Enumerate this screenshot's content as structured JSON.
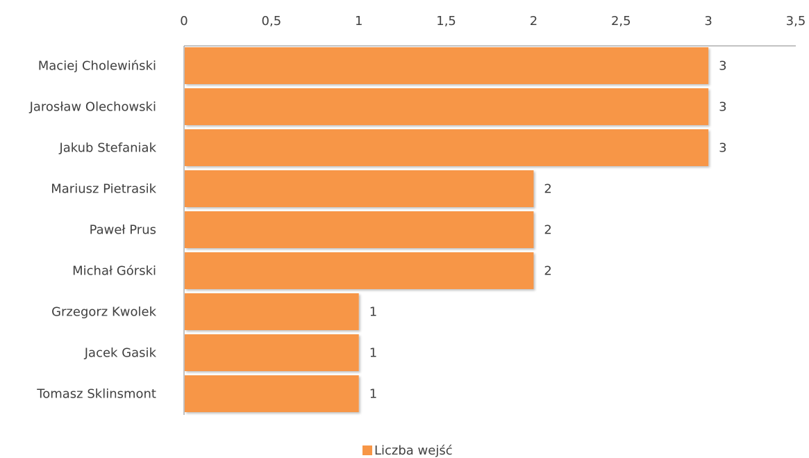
{
  "chart_data": {
    "type": "bar",
    "orientation": "horizontal",
    "categories": [
      "Maciej Cholewiński",
      "Jarosław Olechowski",
      "Jakub Stefaniak",
      "Mariusz Pietrasik",
      "Paweł Prus",
      "Michał Górski",
      "Grzegorz Kwolek",
      "Jacek Gasik",
      "Tomasz Sklinsmont"
    ],
    "series": [
      {
        "name": "Liczba wejść",
        "values": [
          3,
          3,
          3,
          2,
          2,
          2,
          1,
          1,
          1
        ],
        "color": "#F79646"
      }
    ],
    "data_labels": [
      "3",
      "3",
      "3",
      "2",
      "2",
      "2",
      "1",
      "1",
      "1"
    ],
    "x_ticks": [
      "0",
      "0,5",
      "1",
      "1,5",
      "2",
      "2,5",
      "3",
      "3,5"
    ],
    "xlim": [
      0,
      3.5
    ],
    "x_axis_position": "top",
    "grid": false,
    "legend": {
      "position": "bottom",
      "label": "Liczba wejść"
    },
    "title": "",
    "xlabel": "",
    "ylabel": ""
  }
}
